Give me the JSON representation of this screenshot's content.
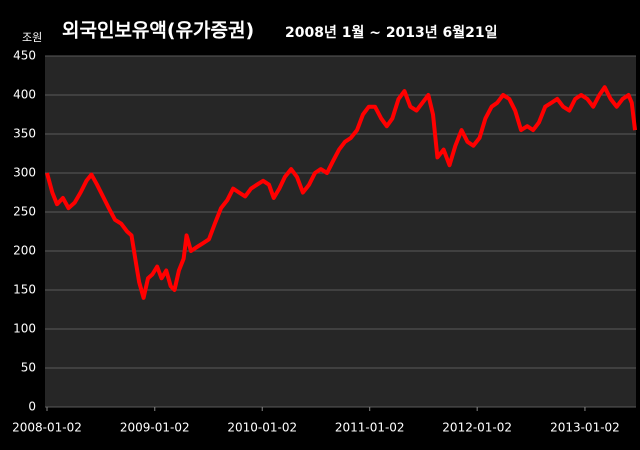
{
  "chart_data": {
    "type": "line",
    "title": "외국인보유액(유가증권)",
    "subtitle": "2008년 1월 ~ 2013년 6월21일",
    "y_unit": "조원",
    "x": [
      "2008-01-02",
      "2008-01-20",
      "2008-02-05",
      "2008-02-25",
      "2008-03-15",
      "2008-04-05",
      "2008-04-25",
      "2008-05-15",
      "2008-06-01",
      "2008-06-20",
      "2008-07-10",
      "2008-07-30",
      "2008-08-20",
      "2008-09-10",
      "2008-09-30",
      "2008-10-15",
      "2008-10-30",
      "2008-11-10",
      "2008-11-25",
      "2008-12-10",
      "2008-12-25",
      "2009-01-10",
      "2009-01-25",
      "2009-02-10",
      "2009-02-25",
      "2009-03-10",
      "2009-03-25",
      "2009-04-10",
      "2009-04-20",
      "2009-05-05",
      "2009-05-25",
      "2009-06-15",
      "2009-07-05",
      "2009-07-25",
      "2009-08-15",
      "2009-09-05",
      "2009-09-25",
      "2009-10-15",
      "2009-11-05",
      "2009-11-25",
      "2009-12-15",
      "2010-01-05",
      "2010-01-25",
      "2010-02-10",
      "2010-03-01",
      "2010-03-20",
      "2010-04-10",
      "2010-04-30",
      "2010-05-20",
      "2010-06-10",
      "2010-06-30",
      "2010-07-20",
      "2010-08-10",
      "2010-08-30",
      "2010-09-20",
      "2010-10-10",
      "2010-10-30",
      "2010-11-20",
      "2010-12-10",
      "2010-12-30",
      "2011-01-20",
      "2011-02-10",
      "2011-03-01",
      "2011-03-20",
      "2011-04-10",
      "2011-04-30",
      "2011-05-20",
      "2011-06-10",
      "2011-06-30",
      "2011-07-20",
      "2011-08-05",
      "2011-08-20",
      "2011-09-10",
      "2011-09-30",
      "2011-10-20",
      "2011-11-10",
      "2011-11-30",
      "2011-12-20",
      "2012-01-10",
      "2012-01-30",
      "2012-02-20",
      "2012-03-10",
      "2012-03-30",
      "2012-04-20",
      "2012-05-10",
      "2012-05-30",
      "2012-06-20",
      "2012-07-10",
      "2012-07-30",
      "2012-08-20",
      "2012-09-10",
      "2012-09-30",
      "2012-10-20",
      "2012-11-10",
      "2012-11-30",
      "2012-12-20",
      "2013-01-10",
      "2013-01-30",
      "2013-02-20",
      "2013-03-10",
      "2013-03-30",
      "2013-04-20",
      "2013-05-10",
      "2013-05-30",
      "2013-06-10",
      "2013-06-21"
    ],
    "series": [
      {
        "color": "#ff0000",
        "values": [
          300,
          275,
          260,
          268,
          255,
          262,
          275,
          290,
          298,
          285,
          270,
          255,
          240,
          235,
          225,
          220,
          185,
          160,
          140,
          165,
          170,
          180,
          165,
          175,
          155,
          150,
          175,
          190,
          220,
          200,
          205,
          210,
          215,
          235,
          255,
          265,
          280,
          275,
          270,
          280,
          285,
          290,
          285,
          268,
          280,
          295,
          305,
          295,
          275,
          285,
          300,
          305,
          300,
          315,
          330,
          340,
          345,
          355,
          375,
          385,
          385,
          370,
          360,
          370,
          395,
          405,
          385,
          380,
          390,
          400,
          375,
          320,
          330,
          310,
          335,
          355,
          340,
          335,
          345,
          370,
          385,
          390,
          400,
          395,
          380,
          355,
          360,
          355,
          365,
          385,
          390,
          395,
          385,
          380,
          395,
          400,
          395,
          385,
          400,
          410,
          395,
          385,
          395,
          400,
          390,
          355
        ]
      }
    ],
    "xlim": [
      "2008-01-02",
      "2013-06-21"
    ],
    "xticks": [
      "2008-01-02",
      "2009-01-02",
      "2010-01-02",
      "2011-01-02",
      "2012-01-02",
      "2013-01-02"
    ],
    "ylim": [
      0,
      450
    ],
    "yticks": [
      0,
      50,
      100,
      150,
      200,
      250,
      300,
      350,
      400,
      450
    ],
    "grid": true
  }
}
